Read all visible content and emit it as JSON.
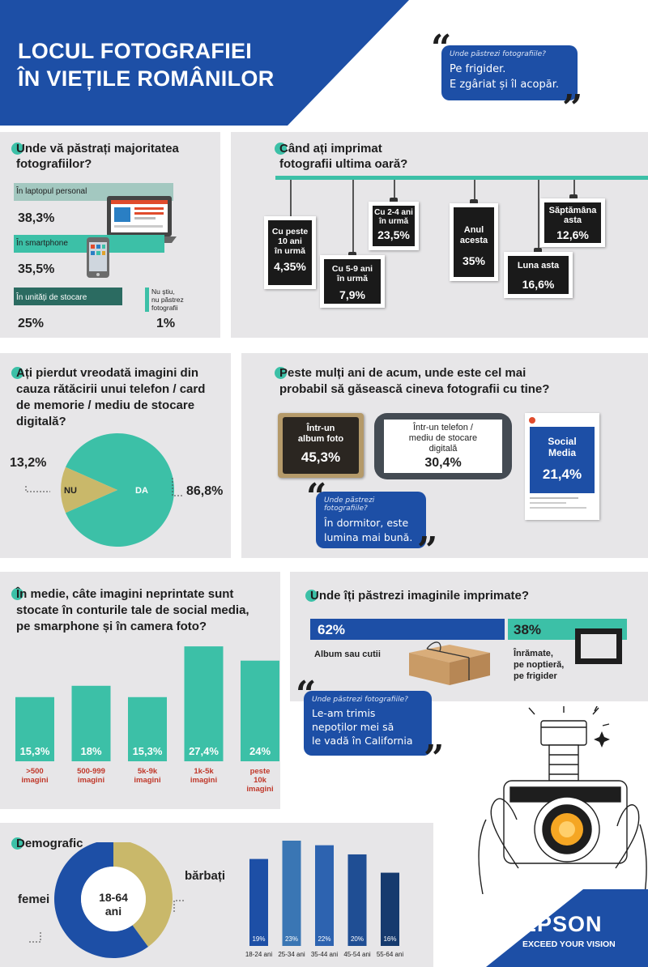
{
  "header": {
    "title_line1": "LOCUL FOTOGRAFIEI",
    "title_line2": "ÎN VIEȚILE ROMÂNILOR",
    "quote_small": "Unde păstrezi fotografiile?",
    "quote_line1": "Pe frigider.",
    "quote_line2": "E zgâriat și îl acopăr."
  },
  "storage": {
    "question_line1": "Unde vă păstrați majoritatea",
    "question_line2": "fotografiilor?",
    "laptop_label": "În laptopul personal",
    "laptop_value": "38,3%",
    "smartphone_label": "În smartphone",
    "smartphone_value": "35,5%",
    "units_label": "În unități de stocare",
    "units_value": "25%",
    "unknown_label_l1": "Nu știu,",
    "unknown_label_l2": "nu păstrez",
    "unknown_label_l3": "fotografii",
    "unknown_value": "1%"
  },
  "print_when": {
    "question_line1": "Când ați imprimat",
    "question_line2": "fotografii ultima oară?",
    "frames": [
      {
        "l1": "Cu peste",
        "l2": "10 ani",
        "l3": "în urmă",
        "value": "4,35%"
      },
      {
        "l1": "Cu 5-9 ani",
        "l2": "în urmă",
        "l3": "",
        "value": "7,9%"
      },
      {
        "l1": "Cu 2-4 ani",
        "l2": "în urmă",
        "l3": "",
        "value": "23,5%"
      },
      {
        "l1": "Anul",
        "l2": "acesta",
        "l3": "",
        "value": "35%"
      },
      {
        "l1": "Luna asta",
        "l2": "",
        "l3": "",
        "value": "16,6%"
      },
      {
        "l1": "Săptămâna",
        "l2": "asta",
        "l3": "",
        "value": "12,6%"
      }
    ]
  },
  "lost": {
    "question_line1": "Ați pierdut vreodată imagini din",
    "question_line2": "cauza rătăcirii unui telefon / card",
    "question_line3": "de memorie / mediu de stocare",
    "question_line4": "digitală?",
    "no_label": "NU",
    "yes_label": "DA",
    "no_value": "13,2%",
    "yes_value": "86,8%"
  },
  "future": {
    "question_line1": "Peste mulți ani de acum, unde este cel mai",
    "question_line2": "probabil să găsească cineva fotografii cu tine?",
    "album_l1": "Într-un",
    "album_l2": "album foto",
    "album_value": "45,3%",
    "phone_l1": "Într-un telefon /",
    "phone_l2": "mediu de stocare",
    "phone_l3": "digitală",
    "phone_value": "30,4%",
    "social_l1": "Social",
    "social_l2": "Media",
    "social_value": "21,4%",
    "quote_small": "Unde păstrezi fotografiile?",
    "quote_line1": "În dormitor, este",
    "quote_line2": "lumina mai bună."
  },
  "unprinted": {
    "question_line1": "În medie, câte imagini neprintate sunt",
    "question_line2": "stocate în conturile tale de social media,",
    "question_line3": "pe smarphone și în camera foto?"
  },
  "printed_where": {
    "question": "Unde îți păstrezi imaginile imprimate?",
    "album_value": "62%",
    "album_label": "Album sau cutii",
    "framed_value": "38%",
    "framed_l1": "Înrămate,",
    "framed_l2": "pe noptieră,",
    "framed_l3": "pe frigider",
    "quote_small": "Unde păstrezi fotografiile?",
    "quote_line1": "Le-am trimis",
    "quote_line2": "nepoților mei să",
    "quote_line3": "le vadă în California"
  },
  "demographic": {
    "title": "Demografic",
    "women_label": "femei",
    "men_label": "bărbați",
    "center_l1": "18-64",
    "center_l2": "ani",
    "women_share": 0.6,
    "men_share": 0.4
  },
  "brand": {
    "logo": "EPSON",
    "tagline": "EXCEED YOUR VISION"
  },
  "colors": {
    "navy": "#1d4fa6",
    "teal": "#3cc0a7",
    "gold": "#c9b86a",
    "panel": "#e7e6e8"
  },
  "chart_data": [
    {
      "type": "bar",
      "categories": [
        "În laptopul personal",
        "În smartphone",
        "În unități de stocare",
        "Nu știu, nu păstrez fotografii"
      ],
      "values": [
        38.3,
        35.5,
        25,
        1
      ]
    },
    {
      "type": "bar",
      "categories": [
        "Cu peste 10 ani în urmă",
        "Cu 5-9 ani în urmă",
        "Cu 2-4 ani în urmă",
        "Anul acesta",
        "Luna asta",
        "Săptămâna asta"
      ],
      "values": [
        4.35,
        7.9,
        23.5,
        35,
        16.6,
        12.6
      ]
    },
    {
      "type": "pie",
      "categories": [
        "DA",
        "NU"
      ],
      "values": [
        86.8,
        13.2
      ]
    },
    {
      "type": "bar",
      "categories": [
        "Într-un album foto",
        "Într-un telefon / mediu de stocare digitală",
        "Social Media"
      ],
      "values": [
        45.3,
        30.4,
        21.4
      ]
    },
    {
      "type": "bar",
      "categories": [
        ">500 imagini",
        "500-999 imagini",
        "5k-9k imagini",
        "1k-5k imagini",
        "peste 10k imagini"
      ],
      "values": [
        15.3,
        18,
        15.3,
        27.4,
        24
      ],
      "labels": [
        "15,3%",
        "18%",
        "15,3%",
        "27,4%",
        "24%"
      ],
      "cat_lines": [
        [
          ">500",
          "imagini"
        ],
        [
          "500-999",
          "imagini"
        ],
        [
          "5k-9k",
          "imagini"
        ],
        [
          "1k-5k",
          "imagini"
        ],
        [
          "peste",
          "10k",
          "imagini"
        ]
      ]
    },
    {
      "type": "bar",
      "categories": [
        "Album sau cutii",
        "Înrămate, pe noptieră, pe frigider"
      ],
      "values": [
        62,
        38
      ]
    },
    {
      "type": "bar",
      "categories": [
        "18-24 ani",
        "25-34 ani",
        "35-44 ani",
        "45-54 ani",
        "55-64 ani"
      ],
      "values": [
        19,
        23,
        22,
        20,
        16
      ],
      "labels": [
        "19%",
        "23%",
        "22%",
        "20%",
        "16%"
      ],
      "colors": [
        "#1d4fa6",
        "#3a76b4",
        "#2d63b0",
        "#1f4e94",
        "#163a6e"
      ]
    }
  ]
}
